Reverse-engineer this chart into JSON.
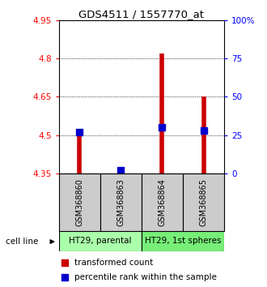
{
  "title": "GDS4511 / 1557770_at",
  "samples": [
    "GSM368860",
    "GSM368863",
    "GSM368864",
    "GSM368865"
  ],
  "cell_lines": [
    {
      "label": "HT29, parental",
      "samples": [
        0,
        1
      ],
      "color": "#aaffaa"
    },
    {
      "label": "HT29, 1st spheres",
      "samples": [
        2,
        3
      ],
      "color": "#77ee77"
    }
  ],
  "transformed_count": [
    4.5,
    4.36,
    4.82,
    4.65
  ],
  "percentile_rank_pct": [
    27,
    2,
    30,
    28
  ],
  "ylim_left": [
    4.35,
    4.95
  ],
  "ylim_right": [
    0,
    100
  ],
  "yticks_left": [
    4.35,
    4.5,
    4.65,
    4.8,
    4.95
  ],
  "ytick_labels_left": [
    "4.35",
    "4.5",
    "4.65",
    "4.8",
    "4.95"
  ],
  "yticks_right": [
    0,
    25,
    50,
    75,
    100
  ],
  "ytick_labels_right": [
    "0",
    "25",
    "50",
    "75",
    "100%"
  ],
  "bar_baseline": 4.35,
  "bar_color": "#cc0000",
  "percentile_color": "#0000cc",
  "sample_box_color": "#cccccc",
  "bg_color": "#ffffff"
}
